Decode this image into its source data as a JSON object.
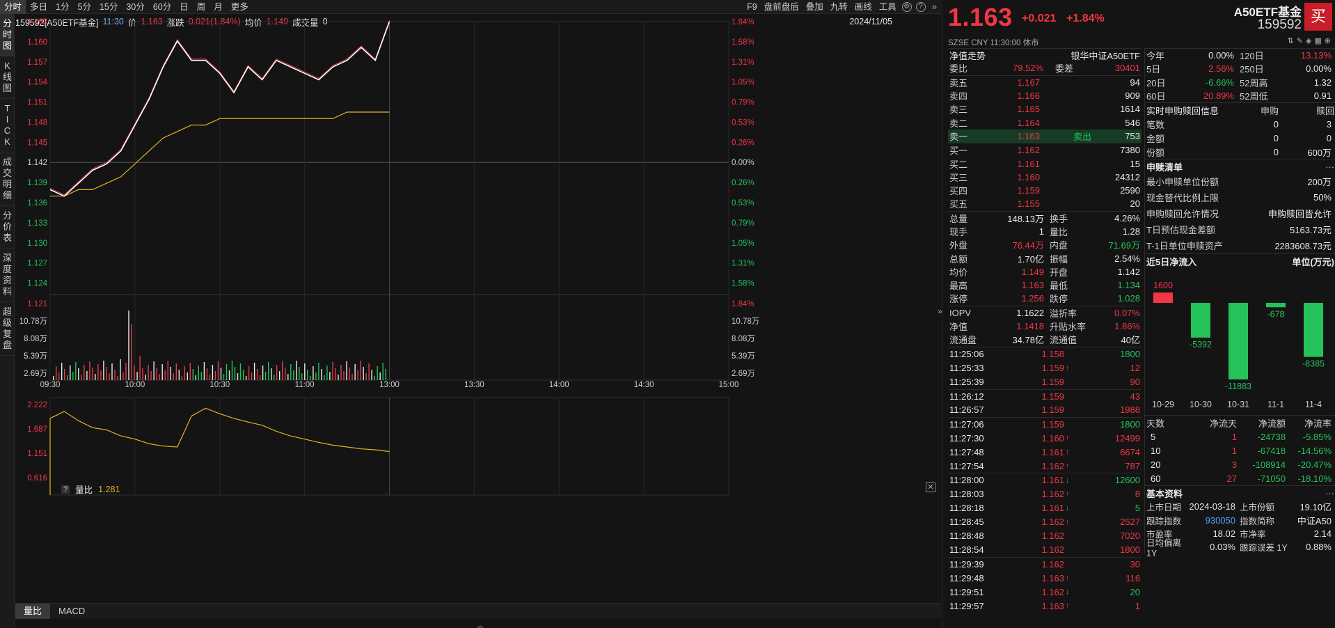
{
  "toolbar": {
    "periods": [
      "分时",
      "多日",
      "1分",
      "5分",
      "15分",
      "30分",
      "60分",
      "日",
      "周",
      "月",
      "更多"
    ],
    "right": [
      "F9",
      "盘前盘后",
      "叠加",
      "九转",
      "画线",
      "工具"
    ]
  },
  "vtabs": [
    "分时图",
    "K线图",
    "TICK",
    "成交明细",
    "分价表",
    "深度资料",
    "超级复盘"
  ],
  "header": {
    "code_name": "159592[A50ETF基金]",
    "time": "11:30",
    "price_label": "价",
    "price": "1.163",
    "change_label": "涨跌",
    "change": "0.021(1.84%)",
    "avg_label": "均价",
    "avg": "1.149",
    "vol_label": "成交量",
    "vol": "0",
    "date": "2024/11/05"
  },
  "axes": {
    "price_ticks": [
      "1.163",
      "1.160",
      "1.157",
      "1.154",
      "1.151",
      "1.148",
      "1.145",
      "1.142",
      "1.139",
      "1.136",
      "1.133",
      "1.130",
      "1.127",
      "1.124"
    ],
    "pct_ticks": [
      "1.84%",
      "1.58%",
      "1.31%",
      "1.05%",
      "0.79%",
      "0.53%",
      "0.26%",
      "0.00%",
      "0.26%",
      "0.53%",
      "0.79%",
      "1.05%",
      "1.31%",
      "1.58%"
    ],
    "vol_ticks_left": [
      "1.121",
      "10.78万",
      "8.08万",
      "5.39万",
      "2.69万"
    ],
    "vol_ticks_right": [
      "1.84%",
      "10.78万",
      "8.08万",
      "5.39万",
      "2.69万"
    ],
    "time_ticks": [
      "09:30",
      "10:00",
      "10:30",
      "11:00",
      "13:00",
      "13:30",
      "14:00",
      "14:30",
      "15:00"
    ],
    "ratio_ticks": [
      "2.222",
      "1.687",
      "1.151",
      "0.616"
    ]
  },
  "chart_data": {
    "type": "line",
    "title": "",
    "x": [
      "09:30",
      "09:35",
      "09:40",
      "09:45",
      "09:50",
      "09:55",
      "10:00",
      "10:05",
      "10:10",
      "10:15",
      "10:20",
      "10:25",
      "10:30",
      "10:35",
      "10:40",
      "10:45",
      "10:50",
      "10:55",
      "11:00",
      "11:05",
      "11:10",
      "11:15",
      "11:20",
      "11:25",
      "11:30"
    ],
    "series": [
      {
        "name": "价",
        "values": [
          1.137,
          1.136,
          1.138,
          1.14,
          1.141,
          1.143,
          1.147,
          1.151,
          1.156,
          1.16,
          1.157,
          1.157,
          1.155,
          1.152,
          1.156,
          1.154,
          1.157,
          1.156,
          1.155,
          1.154,
          1.156,
          1.157,
          1.159,
          1.157,
          1.163
        ]
      },
      {
        "name": "均价",
        "values": [
          1.136,
          1.136,
          1.137,
          1.137,
          1.138,
          1.139,
          1.141,
          1.143,
          1.145,
          1.146,
          1.147,
          1.147,
          1.148,
          1.148,
          1.148,
          1.148,
          1.148,
          1.148,
          1.148,
          1.148,
          1.148,
          1.149,
          1.149,
          1.149,
          1.149
        ]
      }
    ],
    "ylim": [
      1.121,
      1.163
    ],
    "ratio": {
      "name": "量比",
      "value": "1.281",
      "values": [
        2.0,
        2.15,
        1.95,
        1.8,
        1.75,
        1.62,
        1.55,
        1.45,
        1.4,
        1.38,
        2.05,
        2.22,
        2.1,
        2.0,
        1.92,
        1.85,
        1.72,
        1.62,
        1.55,
        1.48,
        1.42,
        1.38,
        1.34,
        1.32,
        1.28
      ],
      "ylim": [
        0.4,
        2.3
      ]
    }
  },
  "ratio_panel": {
    "q": "?",
    "label": "量比",
    "value": "1.281"
  },
  "bottom_tabs": [
    "量比",
    "MACD"
  ],
  "quote": {
    "price": "1.163",
    "change": "+0.021",
    "pct": "+1.84%",
    "sub": "SZSE  CNY  11:30:00  休市",
    "name": "A50ETF基金",
    "code": "159592",
    "buy_btn": "买"
  },
  "nav": {
    "label": "净值走势",
    "value": "银华中证A50ETF"
  },
  "weibi": {
    "k1": "委比",
    "v1": "79.52%",
    "k2": "委差",
    "v2": "30401"
  },
  "sells": [
    {
      "k": "卖五",
      "p": "1.167",
      "q": "94"
    },
    {
      "k": "卖四",
      "p": "1.166",
      "q": "909"
    },
    {
      "k": "卖三",
      "p": "1.165",
      "q": "1614"
    },
    {
      "k": "卖二",
      "p": "1.164",
      "q": "546"
    },
    {
      "k": "卖一",
      "p": "1.163",
      "tag": "卖出",
      "q": "753"
    }
  ],
  "buys": [
    {
      "k": "买一",
      "p": "1.162",
      "q": "7380"
    },
    {
      "k": "买二",
      "p": "1.161",
      "q": "15"
    },
    {
      "k": "买三",
      "p": "1.160",
      "q": "24312"
    },
    {
      "k": "买四",
      "p": "1.159",
      "q": "2590"
    },
    {
      "k": "买五",
      "p": "1.155",
      "q": "20"
    }
  ],
  "stats": [
    {
      "k1": "总量",
      "v1": "148.13万",
      "c1": "white",
      "k2": "换手",
      "v2": "4.26%",
      "c2": "white"
    },
    {
      "k1": "现手",
      "v1": "1",
      "c1": "white",
      "k2": "量比",
      "v2": "1.28",
      "c2": "white"
    },
    {
      "k1": "外盘",
      "v1": "76.44万",
      "c1": "red",
      "k2": "内盘",
      "v2": "71.69万",
      "c2": "green"
    },
    {
      "k1": "总额",
      "v1": "1.70亿",
      "c1": "white",
      "k2": "振幅",
      "v2": "2.54%",
      "c2": "white"
    },
    {
      "k1": "均价",
      "v1": "1.149",
      "c1": "red",
      "k2": "开盘",
      "v2": "1.142",
      "c2": "white"
    },
    {
      "k1": "最高",
      "v1": "1.163",
      "c1": "red",
      "k2": "最低",
      "v2": "1.134",
      "c2": "green"
    },
    {
      "k1": "涨停",
      "v1": "1.256",
      "c1": "red",
      "k2": "跌停",
      "v2": "1.028",
      "c2": "green"
    }
  ],
  "iopv": [
    {
      "k1": "IOPV",
      "v1": "1.1622",
      "c1": "white",
      "k2": "溢折率",
      "v2": "0.07%",
      "c2": "red"
    },
    {
      "k1": "净值",
      "v1": "1.1418",
      "c1": "red",
      "k2": "升贴水率",
      "v2": "1.86%",
      "c2": "red"
    },
    {
      "k1": "流通盘",
      "v1": "34.78亿",
      "c1": "white",
      "k2": "流通值",
      "v2": "40亿",
      "c2": "white"
    }
  ],
  "ticks": [
    {
      "t": "11:25:06",
      "p": "1.158",
      "a": "",
      "q": "1800",
      "qc": "green"
    },
    {
      "t": "11:25:33",
      "p": "1.159",
      "a": "up",
      "q": "12",
      "qc": "red"
    },
    {
      "t": "11:25:39",
      "p": "1.159",
      "a": "",
      "q": "90",
      "qc": "red"
    },
    {
      "t": "11:26:12",
      "p": "1.159",
      "a": "",
      "q": "43",
      "qc": "red"
    },
    {
      "t": "11:26:57",
      "p": "1.159",
      "a": "",
      "q": "1988",
      "qc": "red"
    },
    {
      "t": "11:27:06",
      "p": "1.159",
      "a": "",
      "q": "1800",
      "qc": "green"
    },
    {
      "t": "11:27:30",
      "p": "1.160",
      "a": "up",
      "q": "12499",
      "qc": "red"
    },
    {
      "t": "11:27:48",
      "p": "1.161",
      "a": "up",
      "q": "6674",
      "qc": "red"
    },
    {
      "t": "11:27:54",
      "p": "1.162",
      "a": "up",
      "q": "787",
      "qc": "red"
    },
    {
      "t": "11:28:00",
      "p": "1.161",
      "a": "down",
      "q": "12600",
      "qc": "green"
    },
    {
      "t": "11:28:03",
      "p": "1.162",
      "a": "up",
      "q": "8",
      "qc": "red"
    },
    {
      "t": "11:28:18",
      "p": "1.161",
      "a": "down",
      "q": "5",
      "qc": "green"
    },
    {
      "t": "11:28:45",
      "p": "1.162",
      "a": "up",
      "q": "2527",
      "qc": "red"
    },
    {
      "t": "11:28:48",
      "p": "1.162",
      "a": "",
      "q": "7020",
      "qc": "red"
    },
    {
      "t": "11:28:54",
      "p": "1.162",
      "a": "",
      "q": "1800",
      "qc": "red"
    },
    {
      "t": "11:29:39",
      "p": "1.162",
      "a": "",
      "q": "30",
      "qc": "red"
    },
    {
      "t": "11:29:48",
      "p": "1.163",
      "a": "up",
      "q": "116",
      "qc": "red"
    },
    {
      "t": "11:29:51",
      "p": "1.162",
      "a": "down",
      "q": "20",
      "qc": "green"
    },
    {
      "t": "11:29:57",
      "p": "1.163",
      "a": "up",
      "q": "1",
      "qc": "red"
    }
  ],
  "perf": [
    {
      "k1": "今年",
      "v1": "0.00%",
      "c1": "white",
      "k2": "120日",
      "v2": "13.13%",
      "c2": "red"
    },
    {
      "k1": "5日",
      "v1": "2.56%",
      "c1": "red",
      "k2": "250日",
      "v2": "0.00%",
      "c2": "white"
    },
    {
      "k1": "20日",
      "v1": "-6.66%",
      "c1": "green",
      "k2": "52周高",
      "v2": "1.32",
      "c2": "white"
    },
    {
      "k1": "60日",
      "v1": "20.89%",
      "c1": "red",
      "k2": "52周低",
      "v2": "0.91",
      "c2": "white"
    }
  ],
  "realtime": {
    "title": "实时申购赎回信息",
    "h1": "申购",
    "h2": "赎回",
    "rows": [
      {
        "k": "笔数",
        "v1": "0",
        "v2": "3"
      },
      {
        "k": "金额",
        "v1": "0",
        "v2": "0"
      },
      {
        "k": "份额",
        "v1": "0",
        "v2": "600万"
      }
    ]
  },
  "purchase": {
    "title": "申赎清单",
    "more": "···",
    "rows": [
      {
        "k": "最小申赎单位份额",
        "v": "200万"
      },
      {
        "k": "现金替代比例上限",
        "v": "50%"
      },
      {
        "k": "申购赎回允许情况",
        "v": "申购赎回皆允许"
      },
      {
        "k": "T日预估现金差额",
        "v": "5163.73元"
      },
      {
        "k": "T-1日单位申赎资产",
        "v": "2283608.73元"
      }
    ]
  },
  "inflow": {
    "title": "近5日净流入",
    "unit": "单位(万元)",
    "bar_color_pos": "#f23645",
    "bar_color_neg": "#25c25a",
    "dates": [
      "10-29",
      "10-30",
      "10-31",
      "11-1",
      "11-4"
    ],
    "values": [
      1600,
      -5392,
      -11883,
      -678,
      -8385
    ],
    "labels": [
      "1600",
      "-5392",
      "-11883",
      "-678",
      "-8385"
    ]
  },
  "flowtable": {
    "headers": [
      "天数",
      "净流天",
      "净流额",
      "净流率"
    ],
    "rows": [
      {
        "d": "5",
        "n": "1",
        "amt": "-24738",
        "rate": "-5.85%"
      },
      {
        "d": "10",
        "n": "1",
        "amt": "-67418",
        "rate": "-14.56%"
      },
      {
        "d": "20",
        "n": "3",
        "amt": "-108914",
        "rate": "-20.47%"
      },
      {
        "d": "60",
        "n": "27",
        "amt": "-71050",
        "rate": "-18.10%"
      }
    ]
  },
  "basic": {
    "title": "基本资料",
    "more": "···",
    "rows": [
      {
        "k1": "上市日期",
        "v1": "2024-03-18",
        "c1": "white",
        "k2": "上市份额",
        "v2": "19.10亿",
        "c2": "white"
      },
      {
        "k1": "跟踪指数",
        "v1": "930050",
        "c1": "blue",
        "k2": "指数简称",
        "v2": "中证A50",
        "c2": "white"
      },
      {
        "k1": "市盈率",
        "v1": "18.02",
        "c1": "white",
        "k2": "市净率",
        "v2": "2.14",
        "c2": "white"
      },
      {
        "k1": "日均偏离 1Y",
        "v1": "0.03%",
        "c1": "white",
        "k2": "跟踪误差 1Y",
        "v2": "0.88%",
        "c2": "white"
      }
    ]
  }
}
